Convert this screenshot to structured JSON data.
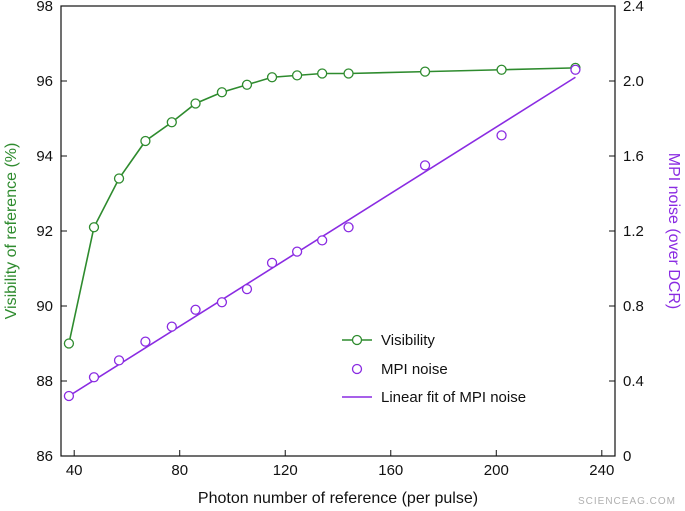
{
  "chart_data": {
    "type": "line",
    "xlabel": "Photon number of reference (per pulse)",
    "ylabel_left": "Visibility of reference (%)",
    "ylabel_right": "MPI noise (over DCR)",
    "xlim": [
      35,
      245
    ],
    "ylim_left": [
      86,
      98
    ],
    "ylim_right": [
      0,
      2.4
    ],
    "x_ticks": [
      40,
      80,
      120,
      160,
      200,
      240
    ],
    "y_left_ticks": [
      86,
      88,
      90,
      92,
      94,
      96,
      98
    ],
    "y_right_ticks": [
      0,
      0.4,
      0.8,
      1.2,
      1.6,
      2.0,
      2.4
    ],
    "x_tick_labels": [
      "40",
      "80",
      "120",
      "160",
      "200",
      "240"
    ],
    "y_left_tick_labels": [
      "86",
      "88",
      "90",
      "92",
      "94",
      "96",
      "98"
    ],
    "y_right_tick_labels": [
      "0",
      "0.4",
      "0.8",
      "1.2",
      "1.6",
      "2.0",
      "2.4"
    ],
    "grid": false,
    "legend_position": "center-right",
    "series": [
      {
        "name": "Visibility",
        "axis": "left",
        "style": "line-marker",
        "color": "#2e8b2e",
        "x": [
          38,
          47.5,
          57,
          67,
          77,
          86,
          96,
          105.5,
          115,
          124.5,
          134,
          144,
          173,
          202,
          230
        ],
        "y": [
          89.0,
          92.1,
          93.4,
          94.4,
          94.9,
          95.4,
          95.7,
          95.9,
          96.1,
          96.15,
          96.2,
          96.2,
          96.25,
          96.3,
          96.35
        ]
      },
      {
        "name": "MPI noise",
        "axis": "right",
        "style": "marker",
        "color": "#8a2be2",
        "x": [
          38,
          47.5,
          57,
          67,
          77,
          86,
          96,
          105.5,
          115,
          124.5,
          134,
          144,
          173,
          202,
          230
        ],
        "y": [
          0.32,
          0.42,
          0.51,
          0.61,
          0.69,
          0.78,
          0.82,
          0.89,
          1.03,
          1.09,
          1.15,
          1.22,
          1.55,
          1.71,
          2.06
        ]
      },
      {
        "name": "Linear fit of MPI noise",
        "axis": "right",
        "style": "line",
        "color": "#8a2be2",
        "x": [
          38,
          230
        ],
        "y": [
          0.32,
          2.02
        ]
      }
    ]
  },
  "colors": {
    "visibility": "#2e8b2e",
    "mpi": "#8a2be2",
    "axis": "#111111"
  },
  "watermark": "SCIENCEAG.COM"
}
